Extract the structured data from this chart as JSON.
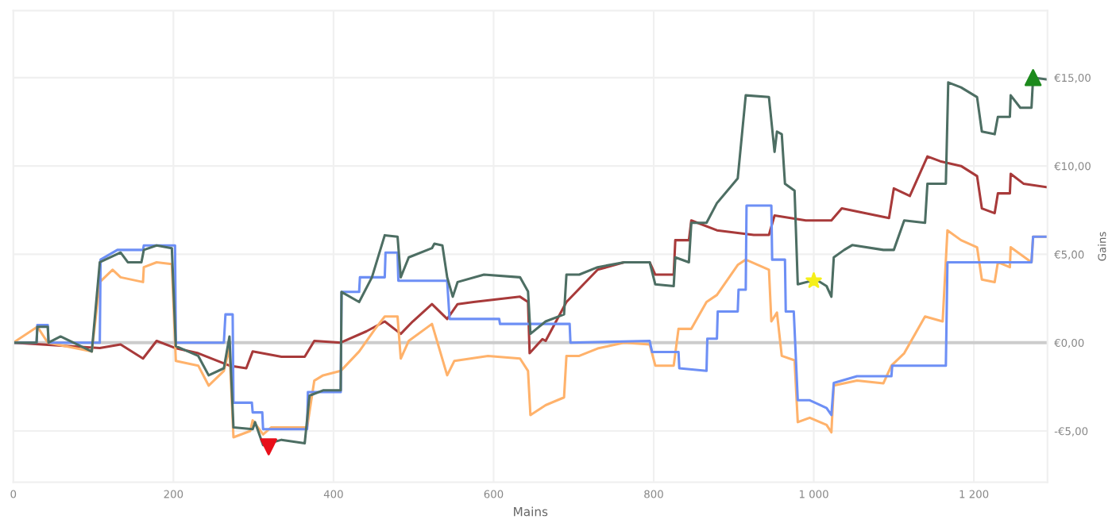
{
  "chart_data": {
    "type": "line",
    "xlabel": "Mains",
    "ylabel": "Gains",
    "xlim": [
      0,
      1292
    ],
    "ylim": [
      -7.9,
      18.8
    ],
    "xticks": [
      0,
      200,
      400,
      600,
      800,
      {
        "value": 1000,
        "label": "1 000"
      },
      {
        "value": 1200,
        "label": "1 200"
      }
    ],
    "yticks": [
      {
        "value": -5,
        "label": "-€5,00"
      },
      {
        "value": 0,
        "label": "€0,00"
      },
      {
        "value": 5,
        "label": "€5,00"
      },
      {
        "value": 10,
        "label": "€10,00"
      },
      {
        "value": 15,
        "label": "€15,00"
      }
    ],
    "grid": true,
    "marker": "none",
    "line_style": "solid",
    "ref_lines": [
      {
        "axis": "y",
        "value": 0,
        "color": "#cccccc"
      }
    ],
    "series": [
      {
        "color": "#a83a3a",
        "x": [
          0,
          108,
          134,
          162,
          179,
          202,
          231,
          270,
          291,
          299,
          335,
          364,
          376,
          409,
          441,
          464,
          484,
          499,
          523,
          542,
          555,
          575,
          633,
          643,
          645,
          661,
          665,
          691,
          730,
          763,
          795,
          802,
          825,
          827,
          844,
          847,
          879,
          925,
          944,
          951,
          990,
          1022,
          1035,
          1094,
          1100,
          1120,
          1142,
          1158,
          1184,
          1204,
          1210,
          1226,
          1230,
          1245,
          1246,
          1262,
          1291
        ],
        "values": [
          0,
          -0.3,
          -0.1,
          -0.9,
          0.1,
          -0.3,
          -0.6,
          -1.3,
          -1.45,
          -0.5,
          -0.8,
          -0.8,
          0.1,
          0,
          0.64,
          1.2,
          0.5,
          1.2,
          2.18,
          1.34,
          2.18,
          2.3,
          2.6,
          2.3,
          -0.6,
          0.2,
          0.1,
          2.3,
          4.13,
          4.55,
          4.55,
          3.85,
          3.85,
          5.8,
          5.8,
          6.92,
          6.36,
          6.1,
          6.1,
          7.2,
          6.92,
          6.92,
          7.6,
          7.05,
          8.73,
          8.3,
          10.54,
          10.27,
          10,
          9.43,
          7.6,
          7.33,
          8.45,
          8.45,
          9.56,
          9,
          8.8
        ]
      },
      {
        "color": "#ffb26b",
        "x": [
          0,
          30,
          43,
          98,
          108,
          124,
          134,
          162,
          163,
          179,
          198,
          203,
          231,
          244,
          263,
          270,
          275,
          296,
          299,
          312,
          322,
          367,
          376,
          387,
          409,
          432,
          452,
          464,
          480,
          484,
          494,
          523,
          542,
          551,
          593,
          633,
          643,
          646,
          665,
          688,
          691,
          707,
          730,
          763,
          795,
          802,
          825,
          831,
          847,
          866,
          879,
          905,
          915,
          944,
          947,
          954,
          960,
          976,
          980,
          995,
          1016,
          1022,
          1025,
          1054,
          1087,
          1097,
          1113,
          1139,
          1161,
          1167,
          1184,
          1204,
          1210,
          1226,
          1230,
          1245,
          1246,
          1272,
          1274,
          1291
        ],
        "values": [
          0,
          0.9,
          0,
          -0.5,
          3.43,
          4.13,
          3.7,
          3.43,
          4.27,
          4.55,
          4.45,
          -1.03,
          -1.3,
          -2.43,
          -1.6,
          -0.3,
          -5.36,
          -5,
          -4.4,
          -5.2,
          -4.8,
          -4.8,
          -2.15,
          -1.85,
          -1.6,
          -0.5,
          0.78,
          1.48,
          1.48,
          -0.9,
          0.1,
          1.06,
          -1.85,
          -1.03,
          -0.75,
          -0.9,
          -1.6,
          -4.1,
          -3.54,
          -3.1,
          -0.75,
          -0.75,
          -0.33,
          0,
          -0.1,
          -1.3,
          -1.3,
          0.78,
          0.78,
          2.3,
          2.7,
          4.4,
          4.7,
          4.13,
          1.2,
          1.7,
          -0.75,
          -1,
          -4.5,
          -4.25,
          -4.66,
          -5.08,
          -2.43,
          -2.15,
          -2.3,
          -1.3,
          -0.6,
          1.48,
          1.2,
          6.36,
          5.8,
          5.4,
          3.57,
          3.43,
          4.55,
          4.27,
          5.4,
          4.55,
          6,
          6
        ]
      },
      {
        "color": "#6d8ff5",
        "x": [
          0,
          29,
          30,
          43,
          44,
          108,
          109,
          130,
          162,
          163,
          202,
          203,
          263,
          265,
          274,
          275,
          298,
          299,
          311,
          312,
          367,
          368,
          409,
          410,
          432,
          433,
          464,
          465,
          480,
          481,
          542,
          545,
          607,
          608,
          665,
          695,
          696,
          795,
          798,
          831,
          832,
          866,
          867,
          879,
          880,
          905,
          906,
          915,
          916,
          947,
          948,
          964,
          965,
          975,
          980,
          995,
          1016,
          1022,
          1025,
          1054,
          1097,
          1098,
          1152,
          1165,
          1167,
          1272,
          1274,
          1291
        ],
        "values": [
          0,
          0,
          1,
          1,
          0,
          0,
          4.7,
          5.25,
          5.25,
          5.5,
          5.5,
          0,
          0,
          1.6,
          1.6,
          -3.4,
          -3.4,
          -3.95,
          -3.95,
          -4.9,
          -4.9,
          -2.8,
          -2.8,
          2.87,
          2.87,
          3.7,
          3.7,
          5.1,
          5.1,
          3.5,
          3.5,
          1.34,
          1.34,
          1.06,
          1.06,
          1.06,
          0,
          0.1,
          -0.53,
          -0.53,
          -1.45,
          -1.6,
          0.22,
          0.22,
          1.76,
          1.76,
          3,
          3,
          7.76,
          7.76,
          4.7,
          4.7,
          1.76,
          1.76,
          -3.26,
          -3.26,
          -3.7,
          -4.1,
          -2.28,
          -1.9,
          -1.9,
          -1.3,
          -1.3,
          -1.3,
          4.55,
          4.55,
          6,
          6
        ]
      },
      {
        "color": "#4d6e63",
        "x": [
          0,
          29,
          30,
          43,
          44,
          59,
          98,
          108,
          134,
          143,
          160,
          163,
          179,
          198,
          203,
          231,
          244,
          263,
          270,
          275,
          299,
          302,
          312,
          335,
          364,
          370,
          387,
          409,
          410,
          432,
          448,
          464,
          480,
          484,
          494,
          523,
          526,
          536,
          542,
          549,
          555,
          588,
          633,
          643,
          646,
          665,
          688,
          691,
          707,
          730,
          763,
          795,
          802,
          825,
          827,
          844,
          847,
          866,
          879,
          905,
          915,
          944,
          951,
          954,
          960,
          964,
          976,
          980,
          1003,
          1016,
          1022,
          1025,
          1038,
          1048,
          1087,
          1100,
          1113,
          1139,
          1142,
          1165,
          1168,
          1184,
          1204,
          1210,
          1226,
          1230,
          1245,
          1246,
          1258,
          1272,
          1274,
          1291
        ],
        "values": [
          0,
          0,
          0.9,
          0.9,
          0,
          0.35,
          -0.5,
          4.55,
          5.1,
          4.55,
          4.55,
          5.25,
          5.5,
          5.35,
          -0.2,
          -0.75,
          -1.85,
          -1.45,
          0.35,
          -4.8,
          -4.9,
          -4.5,
          -5.8,
          -5.5,
          -5.7,
          -3,
          -2.7,
          -2.7,
          2.87,
          2.3,
          3.7,
          6.08,
          6,
          3.7,
          4.83,
          5.35,
          5.6,
          5.5,
          3.7,
          2.6,
          3.43,
          3.85,
          3.7,
          2.9,
          0.5,
          1.2,
          1.6,
          3.85,
          3.85,
          4.27,
          4.55,
          4.55,
          3.3,
          3.2,
          4.83,
          4.55,
          6.78,
          6.78,
          7.9,
          9.3,
          14,
          13.9,
          10.8,
          11.95,
          11.8,
          9,
          8.6,
          3.3,
          3.57,
          3.2,
          2.6,
          4.83,
          5.25,
          5.52,
          5.25,
          5.25,
          6.92,
          6.78,
          9,
          9,
          14.73,
          14.45,
          13.9,
          11.95,
          11.8,
          12.78,
          12.78,
          14,
          13.3,
          13.3,
          15,
          14.9
        ]
      },
      {
        "type": "scatter",
        "marker": "triangle_down",
        "color": "#e8101a",
        "x": [
          319
        ],
        "values": [
          -5.9
        ]
      },
      {
        "type": "scatter",
        "marker": "star",
        "color": "#f5ef1a",
        "x": [
          1000
        ],
        "values": [
          3.5
        ]
      },
      {
        "type": "scatter",
        "marker": "triangle",
        "color": "#1d8a1d",
        "x": [
          1274
        ],
        "values": [
          15
        ]
      }
    ]
  }
}
